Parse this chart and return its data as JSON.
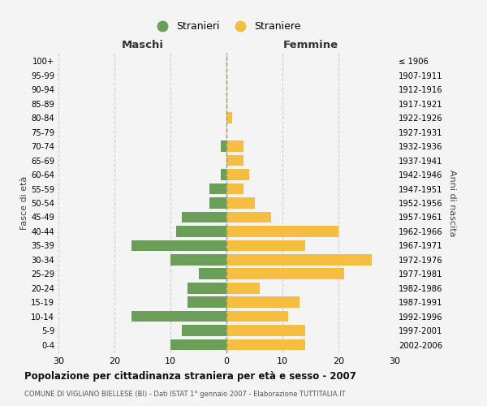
{
  "age_groups": [
    "0-4",
    "5-9",
    "10-14",
    "15-19",
    "20-24",
    "25-29",
    "30-34",
    "35-39",
    "40-44",
    "45-49",
    "50-54",
    "55-59",
    "60-64",
    "65-69",
    "70-74",
    "75-79",
    "80-84",
    "85-89",
    "90-94",
    "95-99",
    "100+"
  ],
  "birth_years": [
    "2002-2006",
    "1997-2001",
    "1992-1996",
    "1987-1991",
    "1982-1986",
    "1977-1981",
    "1972-1976",
    "1967-1971",
    "1962-1966",
    "1957-1961",
    "1952-1956",
    "1947-1951",
    "1942-1946",
    "1937-1941",
    "1932-1936",
    "1927-1931",
    "1922-1926",
    "1917-1921",
    "1912-1916",
    "1907-1911",
    "≤ 1906"
  ],
  "maschi": [
    10,
    8,
    17,
    7,
    7,
    5,
    10,
    17,
    9,
    8,
    3,
    3,
    1,
    0,
    1,
    0,
    0,
    0,
    0,
    0,
    0
  ],
  "femmine": [
    14,
    14,
    11,
    13,
    6,
    21,
    26,
    14,
    20,
    8,
    5,
    3,
    4,
    3,
    3,
    0,
    1,
    0,
    0,
    0,
    0
  ],
  "maschi_color": "#6b9e58",
  "femmine_color": "#f5be41",
  "background_color": "#f4f4f4",
  "title": "Popolazione per cittadinanza straniera per età e sesso - 2007",
  "subtitle": "COMUNE DI VIGLIANO BIELLESE (BI) - Dati ISTAT 1° gennaio 2007 - Elaborazione TUTTITALIA.IT",
  "xlabel_left": "Maschi",
  "xlabel_right": "Femmine",
  "ylabel_left": "Fasce di età",
  "ylabel_right": "Anni di nascita",
  "legend_maschi": "Stranieri",
  "legend_femmine": "Straniere",
  "xlim": 30,
  "grid_color": "#cccccc"
}
